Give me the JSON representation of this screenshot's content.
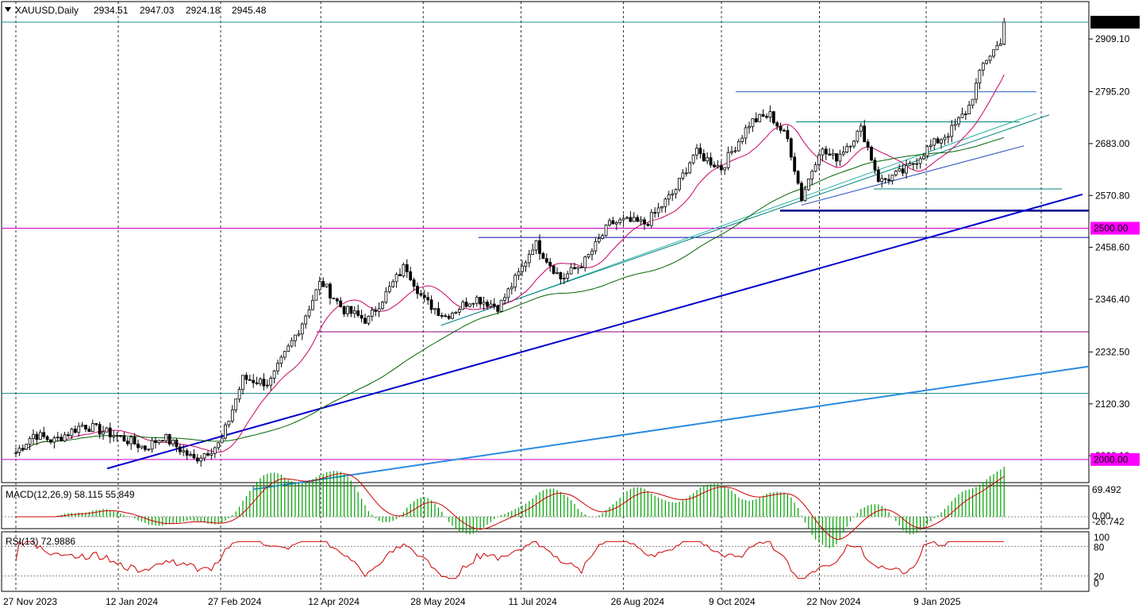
{
  "chart_data": {
    "type": "candlestick",
    "symbol": "XAUUSD",
    "timeframe": "Daily",
    "header": {
      "title": "XAUUSD,Daily",
      "open": "2934.51",
      "high": "2947.03",
      "low": "2924.18",
      "close": "2945.48"
    },
    "price_axis": {
      "ticks": [
        "2909.10",
        "2795.20",
        "2683.00",
        "2570.80",
        "2458.60",
        "2346.40",
        "2232.50",
        "2120.30",
        "2008.10"
      ],
      "ylim": [
        1950,
        2990
      ],
      "current_price_label": "2945.48",
      "level_labels": [
        "2500.00",
        "2000.00"
      ]
    },
    "x_axis": {
      "date_labels": [
        "27 Nov 2023",
        "12 Jan 2024",
        "27 Feb 2024",
        "12 Apr 2024",
        "28 May 2024",
        "11 Jul 2024",
        "26 Aug 2024",
        "9 Oct 2024",
        "22 Nov 2024",
        "9 Jan 2025"
      ]
    },
    "close_series": [
      {
        "date": "27 Nov 2023",
        "close": 2015
      },
      {
        "date": "5 Dec 2023",
        "close": 2055
      },
      {
        "date": "14 Dec 2023",
        "close": 2040
      },
      {
        "date": "27 Dec 2023",
        "close": 2075
      },
      {
        "date": "12 Jan 2024",
        "close": 2050
      },
      {
        "date": "24 Jan 2024",
        "close": 2025
      },
      {
        "date": "1 Feb 2024",
        "close": 2050
      },
      {
        "date": "15 Feb 2024",
        "close": 2000
      },
      {
        "date": "27 Feb 2024",
        "close": 2035
      },
      {
        "date": "8 Mar 2024",
        "close": 2175
      },
      {
        "date": "20 Mar 2024",
        "close": 2165
      },
      {
        "date": "3 Apr 2024",
        "close": 2290
      },
      {
        "date": "12 Apr 2024",
        "close": 2385
      },
      {
        "date": "22 Apr 2024",
        "close": 2325
      },
      {
        "date": "3 May 2024",
        "close": 2300
      },
      {
        "date": "20 May 2024",
        "close": 2420
      },
      {
        "date": "28 May 2024",
        "close": 2345
      },
      {
        "date": "7 Jun 2024",
        "close": 2310
      },
      {
        "date": "20 Jun 2024",
        "close": 2350
      },
      {
        "date": "1 Jul 2024",
        "close": 2330
      },
      {
        "date": "11 Jul 2024",
        "close": 2410
      },
      {
        "date": "17 Jul 2024",
        "close": 2470
      },
      {
        "date": "29 Jul 2024",
        "close": 2390
      },
      {
        "date": "9 Aug 2024",
        "close": 2430
      },
      {
        "date": "20 Aug 2024",
        "close": 2510
      },
      {
        "date": "26 Aug 2024",
        "close": 2515
      },
      {
        "date": "5 Sep 2024",
        "close": 2510
      },
      {
        "date": "18 Sep 2024",
        "close": 2580
      },
      {
        "date": "27 Sep 2024",
        "close": 2665
      },
      {
        "date": "9 Oct 2024",
        "close": 2630
      },
      {
        "date": "22 Oct 2024",
        "close": 2730
      },
      {
        "date": "31 Oct 2024",
        "close": 2745
      },
      {
        "date": "8 Nov 2024",
        "close": 2690
      },
      {
        "date": "14 Nov 2024",
        "close": 2565
      },
      {
        "date": "22 Nov 2024",
        "close": 2670
      },
      {
        "date": "29 Nov 2024",
        "close": 2650
      },
      {
        "date": "11 Dec 2024",
        "close": 2715
      },
      {
        "date": "19 Dec 2024",
        "close": 2600
      },
      {
        "date": "31 Dec 2024",
        "close": 2625
      },
      {
        "date": "9 Jan 2025",
        "close": 2670
      },
      {
        "date": "20 Jan 2025",
        "close": 2710
      },
      {
        "date": "28 Jan 2025",
        "close": 2760
      },
      {
        "date": "4 Feb 2025",
        "close": 2860
      },
      {
        "date": "11 Feb 2025",
        "close": 2900
      },
      {
        "date": "14 Feb 2025",
        "close": 2945
      }
    ],
    "horizontal_levels": [
      2500,
      2000,
      2945.48,
      2795,
      2730,
      2585,
      2538,
      2480,
      2276,
      2143
    ],
    "indicators": {
      "macd": {
        "label": "MACD(12,26,9) 58.115 55.849",
        "ticks": [
          "69.492",
          "0.00",
          "-26.742"
        ]
      },
      "rsi": {
        "label": "RSI(13) 72.9886",
        "ticks": [
          "100",
          "80",
          "20",
          "0"
        ]
      }
    },
    "colors": {
      "up": "#00a000",
      "down": "#cc0000",
      "candle_body_up": "#ffffff",
      "candle_body_down": "#000000",
      "ma_short": "#cc0066",
      "ma_long": "#006400",
      "trend_blue": "#0000cc",
      "trend_light": "#2a8ae0",
      "level_magenta": "#cc00cc",
      "level_teal": "#008080",
      "label_bg_magenta": "#ff00ff",
      "macd_hist": "#00a000",
      "macd_signal": "#cc0000",
      "rsi": "#cc0000"
    }
  }
}
